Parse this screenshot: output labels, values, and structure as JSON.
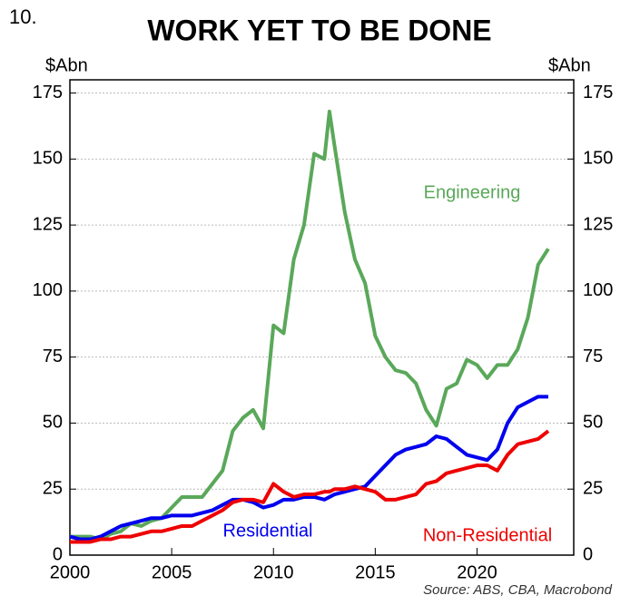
{
  "figure_number": "10.",
  "chart_data": {
    "type": "line",
    "title": "WORK YET TO BE DONE",
    "y_label": "$Abn",
    "y2_label": "$Abn",
    "source": "Source: ABS, CBA, Macrobond",
    "x": [
      2000,
      2000.5,
      2001,
      2001.5,
      2002,
      2002.5,
      2003,
      2003.5,
      2004,
      2004.5,
      2005,
      2005.5,
      2006,
      2006.5,
      2007,
      2007.5,
      2008,
      2008.5,
      2009,
      2009.5,
      2010,
      2010.5,
      2011,
      2011.5,
      2012,
      2012.5,
      2012.75,
      2013,
      2013.5,
      2014,
      2014.5,
      2015,
      2015.5,
      2016,
      2016.5,
      2017,
      2017.5,
      2018,
      2018.5,
      2019,
      2019.5,
      2020,
      2020.5,
      2021,
      2021.5,
      2022,
      2022.5,
      2023,
      2023.5
    ],
    "series": [
      {
        "name": "Engineering",
        "color": "#5aa85a",
        "values": [
          7,
          7,
          7,
          6,
          8,
          9,
          12,
          11,
          13,
          14,
          18,
          22,
          22,
          22,
          27,
          32,
          47,
          52,
          55,
          48,
          87,
          84,
          112,
          125,
          152,
          150,
          168,
          155,
          130,
          112,
          103,
          83,
          75,
          70,
          69,
          65,
          55,
          49,
          63,
          65,
          74,
          72,
          67,
          72,
          72,
          78,
          90,
          110,
          116
        ]
      },
      {
        "name": "Residential",
        "color": "#0000ee",
        "values": [
          7,
          6,
          6,
          7,
          9,
          11,
          12,
          13,
          14,
          14,
          15,
          15,
          15,
          16,
          17,
          19,
          21,
          21,
          20,
          18,
          19,
          21,
          21,
          22,
          22,
          21,
          22,
          23,
          24,
          25,
          26,
          30,
          34,
          38,
          40,
          41,
          42,
          45,
          44,
          41,
          38,
          37,
          36,
          40,
          50,
          56,
          58,
          60,
          60
        ]
      },
      {
        "name": "Non-Residential",
        "color": "#ee0000",
        "values": [
          5,
          5,
          5,
          6,
          6,
          7,
          7,
          8,
          9,
          9,
          10,
          11,
          11,
          13,
          15,
          17,
          20,
          21,
          21,
          20,
          27,
          24,
          22,
          23,
          23,
          24,
          24,
          25,
          25,
          26,
          25,
          24,
          21,
          21,
          22,
          23,
          27,
          28,
          31,
          32,
          33,
          34,
          34,
          32,
          38,
          42,
          43,
          44,
          47
        ]
      }
    ],
    "xlim": [
      2000,
      2024.75
    ],
    "xticks": [
      2000,
      2005,
      2010,
      2015,
      2020
    ],
    "ylim": [
      0,
      180
    ],
    "yticks": [
      0,
      25,
      50,
      75,
      100,
      125,
      150,
      175
    ],
    "y2lim": [
      0,
      180
    ],
    "y2ticks": [
      0,
      25,
      50,
      75,
      100,
      125,
      150,
      175
    ],
    "grid": true
  }
}
